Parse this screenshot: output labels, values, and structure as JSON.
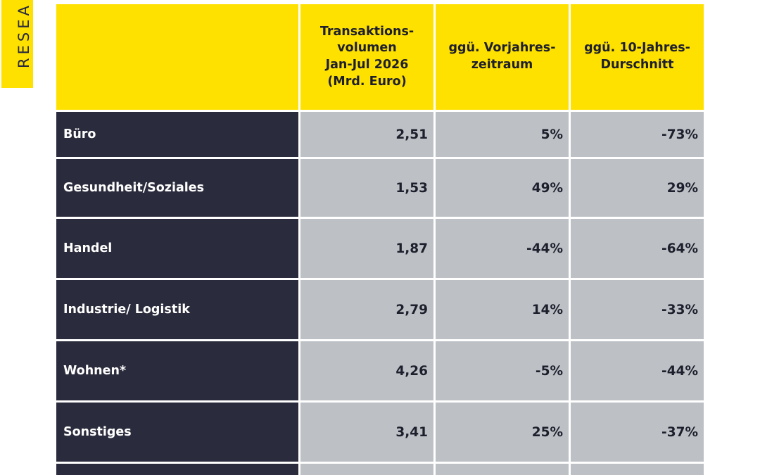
{
  "side_tab": {
    "label": "RESEA"
  },
  "table": {
    "header": {
      "category": "",
      "volume": [
        "Transaktions-",
        "volumen",
        "Jan-Jul 2026",
        "(Mrd. Euro)"
      ],
      "yoy": [
        "ggü. Vorjahres-",
        "zeitraum"
      ],
      "ten_year": [
        "ggü. 10-Jahres-",
        "Durschnitt"
      ]
    },
    "rows": [
      {
        "category": "Büro",
        "volume": "2,51",
        "yoy": "5%",
        "ten_year": "-73%"
      },
      {
        "category": "Gesundheit/Soziales",
        "volume": "1,53",
        "yoy": "49%",
        "ten_year": "29%"
      },
      {
        "category": "Handel",
        "volume": "1,87",
        "yoy": "-44%",
        "ten_year": "-64%"
      },
      {
        "category": "Industrie/ Logistik",
        "volume": "2,79",
        "yoy": "14%",
        "ten_year": "-33%"
      },
      {
        "category": "Wohnen*",
        "volume": "4,26",
        "yoy": "-5%",
        "ten_year": "-44%"
      },
      {
        "category": "Sonstiges",
        "volume": "3,41",
        "yoy": "25%",
        "ten_year": "-37%"
      }
    ]
  },
  "colors": {
    "accent_yellow": "#ffe100",
    "dark_navy": "#2a2b3c",
    "cell_gray": "#bdc1c5"
  }
}
